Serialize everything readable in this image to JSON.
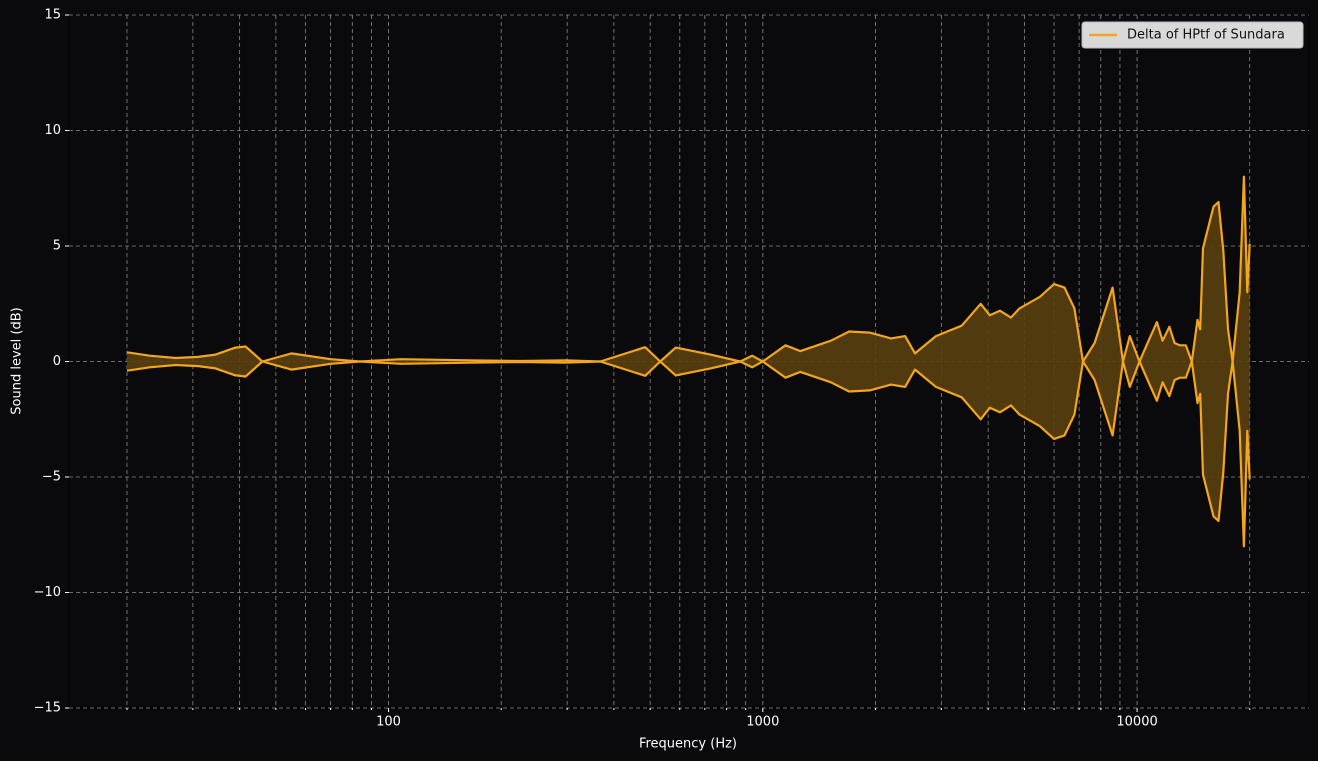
{
  "chart_data": {
    "type": "line",
    "x_label": "Frequency (Hz)",
    "y_label": "Sound level (dB)",
    "x_log": true,
    "grid": true,
    "legend_position": "upper right",
    "fill_color": "#5a3f10",
    "xlim": [
      14,
      28800
    ],
    "ylim": [
      -15,
      15
    ],
    "xticks": [
      100,
      1000,
      10000
    ],
    "xminorticks": [
      20,
      30,
      40,
      50,
      60,
      70,
      80,
      90,
      200,
      300,
      400,
      500,
      600,
      700,
      800,
      900,
      2000,
      3000,
      4000,
      5000,
      6000,
      7000,
      8000,
      9000,
      20000
    ],
    "yticks": [
      {
        "value": -15,
        "label": "−15"
      },
      {
        "value": -10,
        "label": "−10"
      },
      {
        "value": -5,
        "label": "−5"
      },
      0,
      5,
      10,
      15
    ],
    "x": [
      20,
      23,
      27,
      31,
      34.5,
      39,
      41.5,
      46,
      55,
      70,
      84,
      108,
      165,
      225,
      297,
      368,
      485,
      532,
      585,
      725,
      870,
      936,
      1000,
      1150,
      1260,
      1520,
      1700,
      1930,
      2200,
      2400,
      2550,
      2900,
      3400,
      3820,
      4040,
      4300,
      4600,
      4850,
      5500,
      6000,
      6400,
      6800,
      7170,
      7700,
      8600,
      9170,
      9560,
      10150,
      10800,
      11300,
      11700,
      12200,
      12600,
      13000,
      13500,
      14000,
      14500,
      14750,
      15000,
      16000,
      16500,
      17000,
      17500,
      18000,
      18800,
      19300,
      19700,
      20000
    ],
    "series": [
      {
        "name": "Delta of HPtf of Sundara",
        "color": "#f2a51f",
        "values": [
          0.4,
          0.25,
          0.15,
          0.2,
          0.3,
          0.6,
          0.65,
          0,
          -0.35,
          -0.1,
          0,
          0.1,
          0.05,
          0.02,
          0.05,
          0,
          0.62,
          0,
          -0.6,
          -0.3,
          0,
          0.25,
          0,
          -0.7,
          -0.45,
          -0.9,
          -1.3,
          -1.25,
          -1.0,
          -1.1,
          -0.35,
          -1.1,
          -1.55,
          -2.5,
          -2.0,
          -2.2,
          -1.9,
          -2.3,
          -2.8,
          -3.35,
          -3.2,
          -2.3,
          0,
          0.8,
          3.2,
          0,
          -1.1,
          0,
          1.0,
          1.7,
          0.9,
          1.5,
          0.8,
          0.7,
          0.7,
          0,
          1.8,
          1.4,
          4.9,
          6.7,
          6.9,
          4.8,
          1.4,
          0,
          3.0,
          8.0,
          3.0,
          5.1
        ]
      }
    ]
  }
}
